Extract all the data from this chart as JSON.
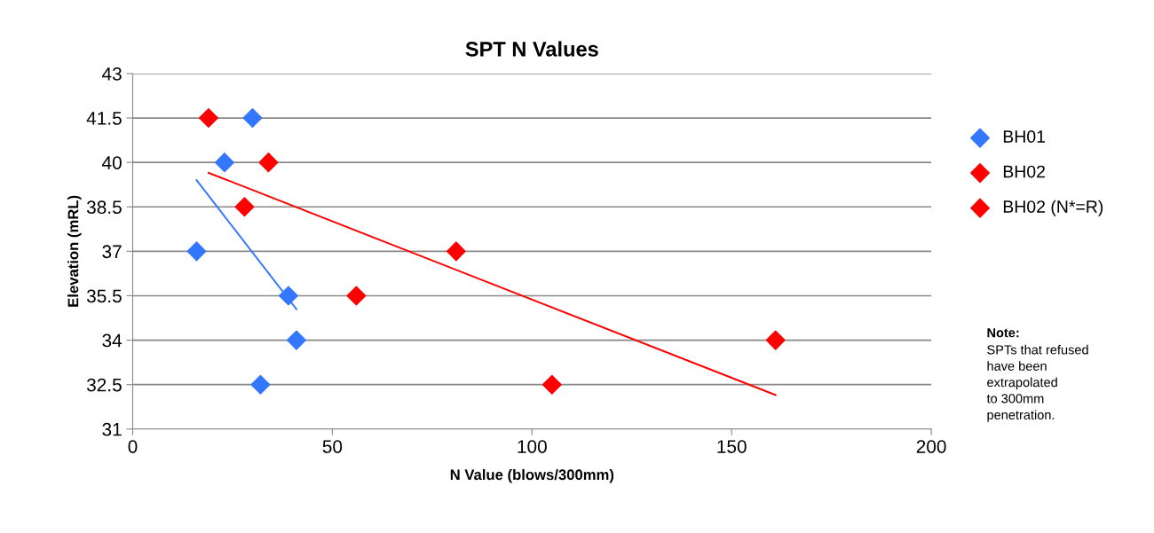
{
  "chart_data": {
    "type": "scatter",
    "title": "SPT N Values",
    "xlabel": "N Value (blows/300mm)",
    "ylabel": "Elevation (mRL)",
    "xlim": [
      0,
      200
    ],
    "xticks": [
      0,
      50,
      100,
      150,
      200
    ],
    "ylim": [
      31,
      43
    ],
    "yticks": [
      31,
      32.5,
      34,
      35.5,
      37,
      38.5,
      40,
      41.5,
      43
    ],
    "grid": "y",
    "legend": "right",
    "series": [
      {
        "name": "BH01",
        "color": "#3377ff",
        "marker": "diamond",
        "x": [
          30,
          23,
          16,
          39,
          41,
          32
        ],
        "values": [
          41.5,
          40,
          37,
          35.5,
          34,
          32.5
        ]
      },
      {
        "name": "BH02",
        "color": "#ff0000",
        "marker": "diamond",
        "x": [
          19,
          34,
          28
        ],
        "values": [
          41.5,
          40,
          38.5
        ]
      },
      {
        "name": "BH02 (N*=R)",
        "color": "#ff0000",
        "marker": "diamond",
        "x": [
          81,
          56,
          161,
          105
        ],
        "values": [
          37,
          35.5,
          34,
          32.5
        ]
      },
      {
        "type": "line",
        "marker": "none",
        "color": "#3377ff",
        "x": [
          16,
          41
        ],
        "values": [
          39.4,
          35.05
        ]
      },
      {
        "type": "line",
        "marker": "none",
        "color": "#ff0000",
        "x": [
          19,
          161
        ],
        "values": [
          39.65,
          32.15
        ]
      }
    ],
    "annotations": [
      "Note:",
      "SPTs that refused\nhave been\nextrapolated\nto 300mm\npenetration."
    ]
  }
}
